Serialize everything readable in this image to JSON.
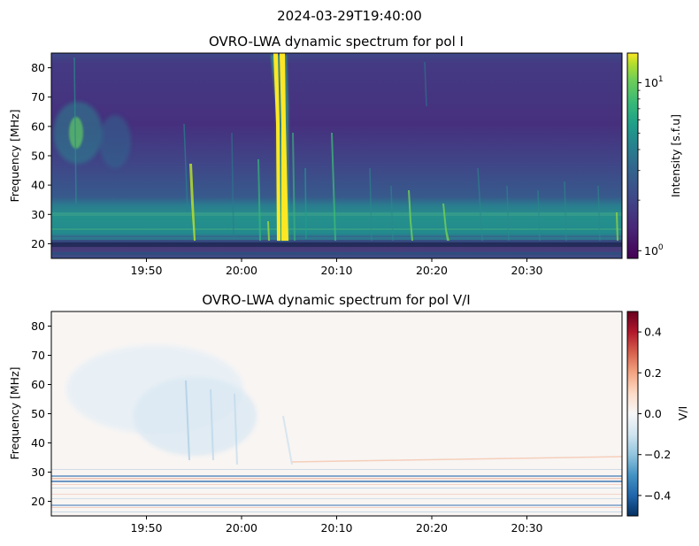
{
  "figure": {
    "suptitle": "2024-03-29T19:40:00"
  },
  "chart_data": [
    {
      "type": "heatmap",
      "title": "OVRO-LWA dynamic spectrum for pol I",
      "xlabel": "",
      "ylabel": "Frequency [MHz]",
      "x_ticks": [
        "19:50",
        "20:00",
        "20:10",
        "20:20",
        "20:30"
      ],
      "x_range": [
        "19:40",
        "20:40"
      ],
      "y_ticks": [
        20,
        30,
        40,
        50,
        60,
        70,
        80
      ],
      "ylim": [
        15,
        85
      ],
      "colormap": "viridis",
      "colorbar": {
        "label": "Intensity [s.f.u]",
        "scale": "log",
        "range": [
          0.9,
          15
        ],
        "tick_labels": [
          "10^0",
          "10^1"
        ]
      },
      "features": [
        {
          "kind": "burst",
          "time": "20:04",
          "freq_range": [
            20,
            85
          ],
          "intensity": "high"
        },
        {
          "kind": "burst",
          "time": "19:55",
          "freq_range": [
            18,
            45
          ],
          "intensity": "medium"
        },
        {
          "kind": "burst",
          "time": "20:18",
          "freq_range": [
            18,
            40
          ],
          "intensity": "medium"
        },
        {
          "kind": "burst",
          "time": "20:22",
          "freq_range": [
            18,
            30
          ],
          "intensity": "medium"
        },
        {
          "kind": "burst",
          "time": "19:43",
          "freq_range": [
            45,
            65
          ],
          "intensity": "low"
        },
        {
          "kind": "band",
          "freq_range": [
            20,
            28
          ],
          "intensity": "medium"
        }
      ]
    },
    {
      "type": "heatmap",
      "title": "OVRO-LWA dynamic spectrum for pol V/I",
      "xlabel": "",
      "ylabel": "Frequency [MHz]",
      "x_ticks": [
        "19:50",
        "20:00",
        "20:10",
        "20:20",
        "20:30"
      ],
      "x_range": [
        "19:40",
        "20:40"
      ],
      "y_ticks": [
        20,
        30,
        40,
        50,
        60,
        70,
        80
      ],
      "ylim": [
        15,
        85
      ],
      "colormap": "RdBu_r",
      "colorbar": {
        "label": "V/I",
        "scale": "linear",
        "range": [
          -0.5,
          0.5
        ],
        "ticks": [
          0.4,
          0.2,
          0.0,
          -0.2,
          -0.4
        ],
        "tick_labels": [
          "0.4",
          "0.2",
          "0.0",
          "−0.2",
          "−0.4"
        ]
      }
    }
  ]
}
